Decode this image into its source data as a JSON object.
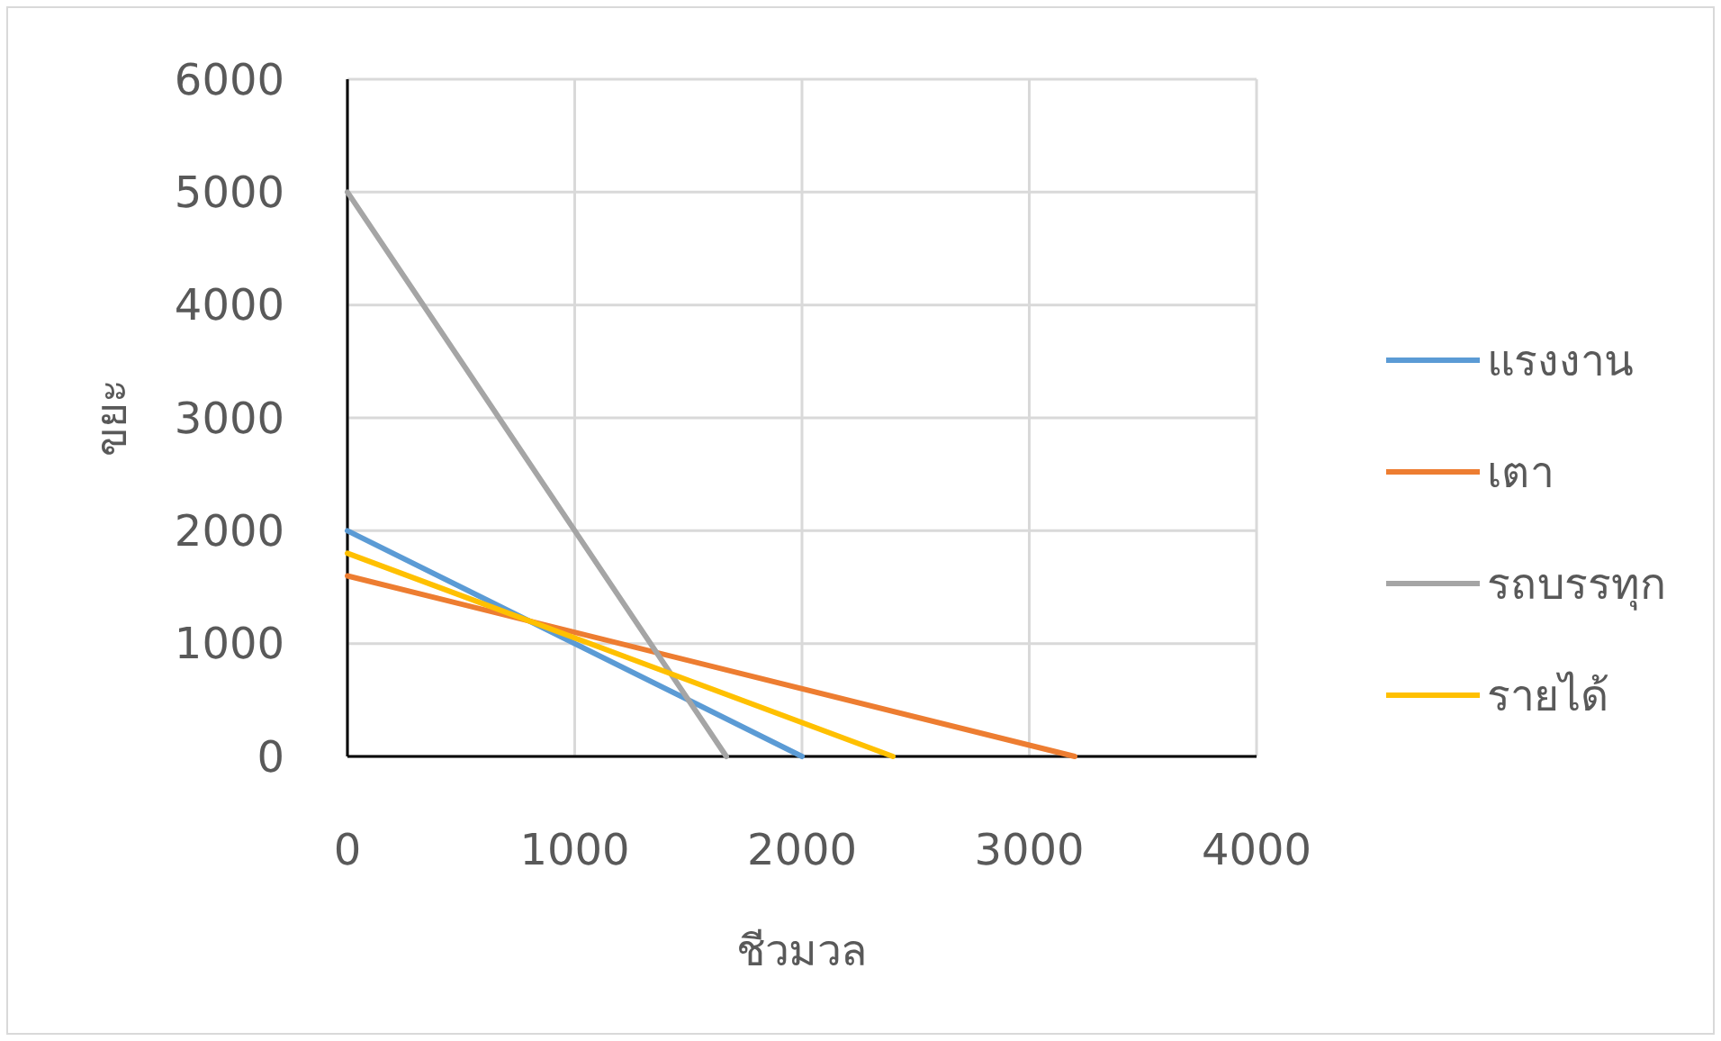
{
  "chart_data": {
    "type": "line",
    "xlabel": "ชีวมวล",
    "ylabel": "ขยะ",
    "xlim": [
      0,
      4000
    ],
    "ylim": [
      0,
      6000
    ],
    "xticks": [
      0,
      1000,
      2000,
      3000,
      4000
    ],
    "yticks": [
      0,
      1000,
      2000,
      3000,
      4000,
      5000,
      6000
    ],
    "grid": true,
    "legend": "right",
    "marker": "none",
    "line_style": "solid",
    "series": [
      {
        "name": "แรงงาน",
        "color": "#5b9bd5",
        "x": [
          0,
          2000
        ],
        "values": [
          2000,
          0
        ]
      },
      {
        "name": "เตา",
        "color": "#ed7d31",
        "x": [
          0,
          3200
        ],
        "values": [
          1600,
          0
        ]
      },
      {
        "name": "รถบรรทุก",
        "color": "#a5a5a5",
        "x": [
          0,
          1667
        ],
        "values": [
          5000,
          0
        ]
      },
      {
        "name": "รายได้",
        "color": "#ffc000",
        "x": [
          0,
          2400
        ],
        "values": [
          1800,
          0
        ]
      }
    ]
  }
}
